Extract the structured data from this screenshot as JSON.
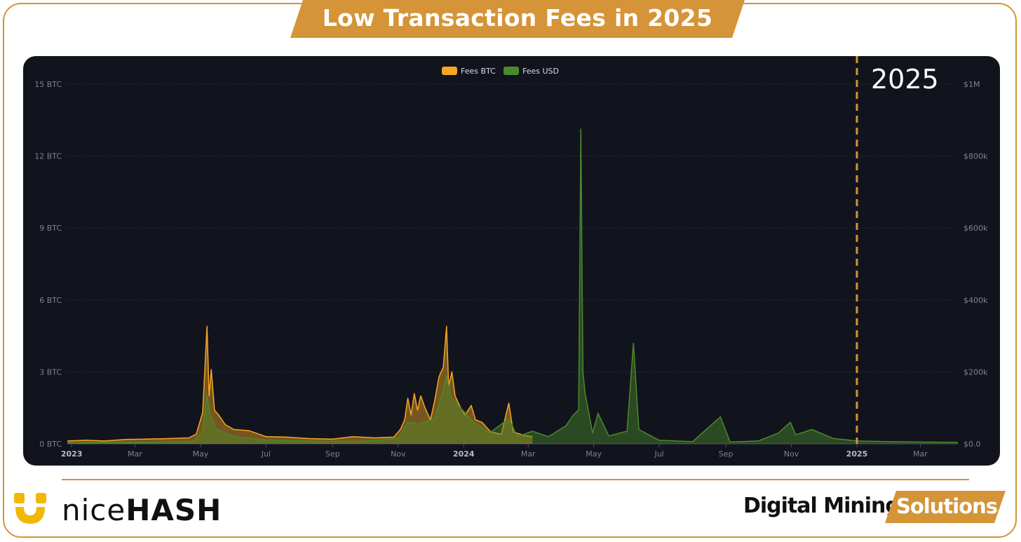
{
  "header": {
    "title": "Low Transaction Fees in 2025"
  },
  "colors": {
    "accent": "#d49437",
    "btc": "#f5a623",
    "usd": "#4b8a2a",
    "panel": "#12141d",
    "grid": "#2a2e3a",
    "tick": "#7d8190"
  },
  "footer": {
    "brand_light": "nice",
    "brand_bold": "HASH",
    "tagline_main": "Digital Mining",
    "tagline_badge": "Solutions"
  },
  "chart_data": {
    "type": "line",
    "title": "",
    "legend": [
      "Fees BTC",
      "Fees USD"
    ],
    "legend_position": "top-center",
    "grid": true,
    "annotation": {
      "label": "2025",
      "at": "2025-01-01",
      "style": "dashed-vertical"
    },
    "y_left": {
      "label": "",
      "ticks": [
        "0 BTC",
        "3 BTC",
        "6 BTC",
        "9 BTC",
        "12 BTC",
        "15 BTC"
      ],
      "range": [
        0,
        15
      ],
      "unit": "BTC"
    },
    "y_right": {
      "label": "",
      "ticks": [
        "$0.0",
        "$200k",
        "$400k",
        "$600k",
        "$800k",
        "$1M"
      ],
      "range": [
        0,
        1000000
      ],
      "unit": "USD"
    },
    "x_ticks": [
      {
        "label": "2023",
        "date": "2023-01-01",
        "bold": true
      },
      {
        "label": "Mar",
        "date": "2023-03-01",
        "bold": false
      },
      {
        "label": "May",
        "date": "2023-05-01",
        "bold": false
      },
      {
        "label": "Jul",
        "date": "2023-07-01",
        "bold": false
      },
      {
        "label": "Sep",
        "date": "2023-09-01",
        "bold": false
      },
      {
        "label": "Nov",
        "date": "2023-11-01",
        "bold": false
      },
      {
        "label": "2024",
        "date": "2024-01-01",
        "bold": true
      },
      {
        "label": "Mar",
        "date": "2024-03-01",
        "bold": false
      },
      {
        "label": "May",
        "date": "2024-05-01",
        "bold": false
      },
      {
        "label": "Jul",
        "date": "2024-07-01",
        "bold": false
      },
      {
        "label": "Sep",
        "date": "2024-09-01",
        "bold": false
      },
      {
        "label": "Nov",
        "date": "2024-11-01",
        "bold": false
      },
      {
        "label": "2025",
        "date": "2025-01-01",
        "bold": true
      },
      {
        "label": "Mar",
        "date": "2025-03-01",
        "bold": false
      }
    ],
    "x_range": [
      "2022-12-28",
      "2025-04-05"
    ],
    "series": [
      {
        "name": "Fees BTC",
        "axis": "left",
        "points": [
          [
            "2022-12-28",
            0.12
          ],
          [
            "2023-01-15",
            0.15
          ],
          [
            "2023-02-01",
            0.12
          ],
          [
            "2023-02-20",
            0.18
          ],
          [
            "2023-03-10",
            0.2
          ],
          [
            "2023-04-01",
            0.22
          ],
          [
            "2023-04-20",
            0.25
          ],
          [
            "2023-04-27",
            0.4
          ],
          [
            "2023-05-03",
            1.3
          ],
          [
            "2023-05-07",
            4.9
          ],
          [
            "2023-05-09",
            2.0
          ],
          [
            "2023-05-11",
            3.1
          ],
          [
            "2023-05-14",
            1.4
          ],
          [
            "2023-05-18",
            1.2
          ],
          [
            "2023-05-24",
            0.8
          ],
          [
            "2023-06-01",
            0.6
          ],
          [
            "2023-06-15",
            0.55
          ],
          [
            "2023-07-01",
            0.3
          ],
          [
            "2023-07-20",
            0.28
          ],
          [
            "2023-08-10",
            0.22
          ],
          [
            "2023-09-01",
            0.2
          ],
          [
            "2023-09-20",
            0.3
          ],
          [
            "2023-10-10",
            0.25
          ],
          [
            "2023-10-28",
            0.28
          ],
          [
            "2023-11-03",
            0.6
          ],
          [
            "2023-11-07",
            1.0
          ],
          [
            "2023-11-10",
            1.9
          ],
          [
            "2023-11-13",
            1.2
          ],
          [
            "2023-11-16",
            2.1
          ],
          [
            "2023-11-19",
            1.4
          ],
          [
            "2023-11-22",
            2.0
          ],
          [
            "2023-11-26",
            1.5
          ],
          [
            "2023-12-01",
            1.0
          ],
          [
            "2023-12-05",
            1.8
          ],
          [
            "2023-12-09",
            2.8
          ],
          [
            "2023-12-13",
            3.2
          ],
          [
            "2023-12-16",
            4.9
          ],
          [
            "2023-12-18",
            2.4
          ],
          [
            "2023-12-21",
            3.0
          ],
          [
            "2023-12-24",
            2.0
          ],
          [
            "2023-12-28",
            1.6
          ],
          [
            "2024-01-02",
            1.2
          ],
          [
            "2024-01-08",
            1.6
          ],
          [
            "2024-01-12",
            1.0
          ],
          [
            "2024-01-18",
            0.9
          ],
          [
            "2024-01-26",
            0.5
          ],
          [
            "2024-02-05",
            0.4
          ],
          [
            "2024-02-12",
            1.7
          ],
          [
            "2024-02-16",
            0.5
          ],
          [
            "2024-02-26",
            0.35
          ],
          [
            "2024-03-05",
            0.3
          ]
        ]
      },
      {
        "name": "Fees USD",
        "axis": "right",
        "points": [
          [
            "2022-12-28",
            2000
          ],
          [
            "2023-02-01",
            3500
          ],
          [
            "2023-03-15",
            5000
          ],
          [
            "2023-04-25",
            7000
          ],
          [
            "2023-05-03",
            35000
          ],
          [
            "2023-05-07",
            135000
          ],
          [
            "2023-05-10",
            80000
          ],
          [
            "2023-05-16",
            40000
          ],
          [
            "2023-06-01",
            20000
          ],
          [
            "2023-07-01",
            10000
          ],
          [
            "2023-08-15",
            7000
          ],
          [
            "2023-10-01",
            7000
          ],
          [
            "2023-11-01",
            15000
          ],
          [
            "2023-11-10",
            60000
          ],
          [
            "2023-11-20",
            55000
          ],
          [
            "2023-12-05",
            70000
          ],
          [
            "2023-12-13",
            150000
          ],
          [
            "2023-12-16",
            190000
          ],
          [
            "2023-12-20",
            130000
          ],
          [
            "2024-01-01",
            90000
          ],
          [
            "2024-01-10",
            60000
          ],
          [
            "2024-01-25",
            30000
          ],
          [
            "2024-02-12",
            70000
          ],
          [
            "2024-02-20",
            20000
          ],
          [
            "2024-03-05",
            35000
          ],
          [
            "2024-03-20",
            20000
          ],
          [
            "2024-04-05",
            50000
          ],
          [
            "2024-04-12",
            80000
          ],
          [
            "2024-04-17",
            95000
          ],
          [
            "2024-04-19",
            875000
          ],
          [
            "2024-04-21",
            200000
          ],
          [
            "2024-04-23",
            140000
          ],
          [
            "2024-04-30",
            30000
          ],
          [
            "2024-05-05",
            85000
          ],
          [
            "2024-05-15",
            22000
          ],
          [
            "2024-06-01",
            35000
          ],
          [
            "2024-06-07",
            280000
          ],
          [
            "2024-06-12",
            40000
          ],
          [
            "2024-07-01",
            10000
          ],
          [
            "2024-08-01",
            6000
          ],
          [
            "2024-08-27",
            75000
          ],
          [
            "2024-09-05",
            5000
          ],
          [
            "2024-10-01",
            8000
          ],
          [
            "2024-10-20",
            30000
          ],
          [
            "2024-10-31",
            60000
          ],
          [
            "2024-11-05",
            25000
          ],
          [
            "2024-11-20",
            40000
          ],
          [
            "2024-12-10",
            15000
          ],
          [
            "2025-01-01",
            8000
          ],
          [
            "2025-02-01",
            6000
          ],
          [
            "2025-03-01",
            5000
          ],
          [
            "2025-04-05",
            4000
          ]
        ]
      }
    ]
  }
}
